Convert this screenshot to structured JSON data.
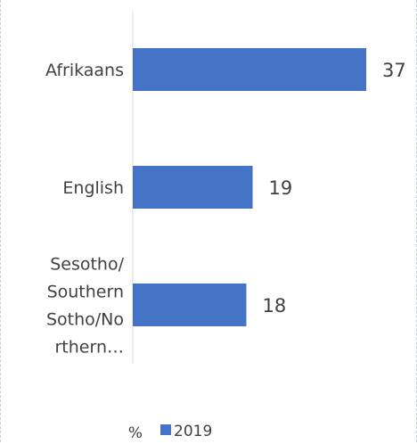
{
  "chart_data": {
    "type": "bar",
    "orientation": "horizontal",
    "categories": [
      [
        "Afrikaans"
      ],
      [
        "English"
      ],
      [
        "Sesotho/",
        "Southern",
        "Sotho/No",
        "rthern…"
      ]
    ],
    "series": [
      {
        "name": "2019",
        "values": [
          37,
          19,
          18
        ],
        "color": "#4472c4"
      }
    ],
    "xlim": [
      0,
      37
    ],
    "data_labels": [
      "37",
      "19",
      "18"
    ],
    "legend": {
      "prefix": "%",
      "position": "bottom",
      "entries": [
        "2019"
      ]
    },
    "grid": false
  }
}
